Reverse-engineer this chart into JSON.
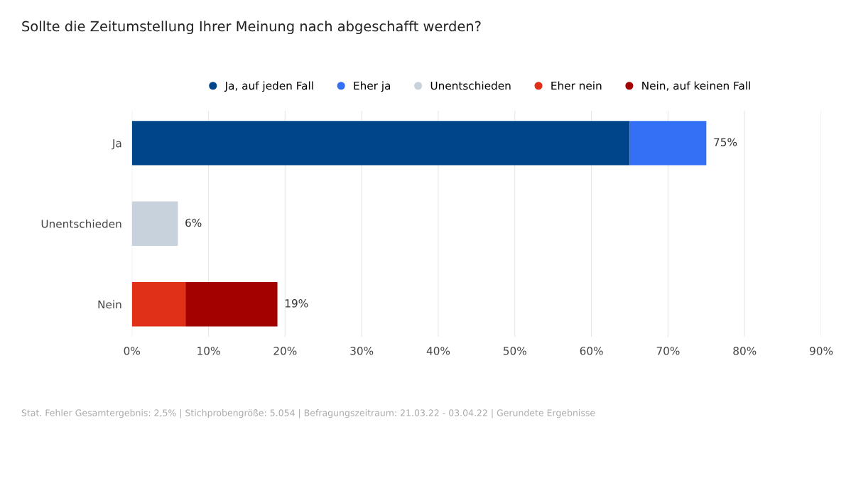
{
  "chart_data": {
    "type": "bar",
    "orientation": "horizontal",
    "stacked": true,
    "title": "Sollte die Zeitumstellung Ihrer Meinung nach abgeschafft werden?",
    "categories": [
      "Ja",
      "Unentschieden",
      "Nein"
    ],
    "series": [
      {
        "name": "Ja, auf jeden Fall",
        "color": "#00458a",
        "values": [
          65,
          null,
          null
        ]
      },
      {
        "name": "Eher ja",
        "color": "#3370f5",
        "values": [
          10,
          null,
          null
        ]
      },
      {
        "name": "Unentschieden",
        "color": "#c8d2dc",
        "values": [
          null,
          6,
          null
        ]
      },
      {
        "name": "Eher nein",
        "color": "#e03018",
        "values": [
          null,
          null,
          7
        ]
      },
      {
        "name": "Nein, auf keinen Fall",
        "color": "#a30000",
        "values": [
          null,
          null,
          12
        ]
      }
    ],
    "totals": [
      "75%",
      "6%",
      "19%"
    ],
    "xlim": [
      0,
      90
    ],
    "xticks": [
      {
        "value": 0,
        "label": "0%"
      },
      {
        "value": 10,
        "label": "10%"
      },
      {
        "value": 20,
        "label": "20%"
      },
      {
        "value": 30,
        "label": "30%"
      },
      {
        "value": 40,
        "label": "40%"
      },
      {
        "value": 50,
        "label": "50%"
      },
      {
        "value": 60,
        "label": "60%"
      },
      {
        "value": 70,
        "label": "70%"
      },
      {
        "value": 80,
        "label": "80%"
      },
      {
        "value": 90,
        "label": "90%"
      }
    ],
    "grid": "x",
    "legend": "top",
    "annotations": [
      "Stat. Fehler Gesamtergebnis: 2,5% | Stichprobengröße: 5.054 | Befragungszeitraum: 21.03.22 - 03.04.22 | Gerundete Ergebnisse"
    ]
  }
}
